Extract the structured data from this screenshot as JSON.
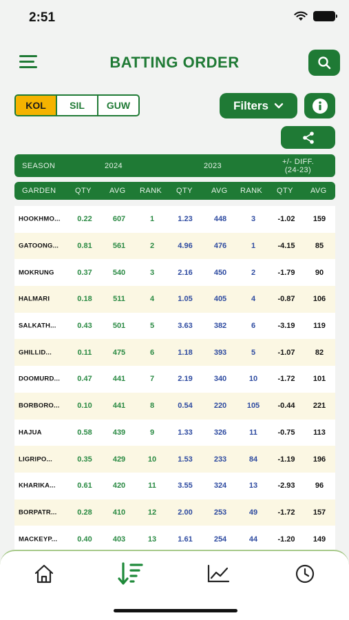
{
  "status_bar": {
    "time": "2:51"
  },
  "header": {
    "title": "BATTING ORDER"
  },
  "region_tabs": [
    {
      "label": "KOL",
      "active": true
    },
    {
      "label": "SIL",
      "active": false
    },
    {
      "label": "GUW",
      "active": false
    }
  ],
  "toolbar": {
    "filters_label": "Filters"
  },
  "table_header": {
    "season_label": "SEASON",
    "year_current": "2024",
    "year_previous": "2023",
    "diff_label_line1": "+/- DIFF.",
    "diff_label_line2": "(24-23)",
    "columns": [
      "GARDEN",
      "QTY",
      "AVG",
      "RANK",
      "QTY",
      "AVG",
      "RANK",
      "QTY",
      "AVG"
    ]
  },
  "rows": [
    {
      "garden": "HOOKHMO...",
      "qty24": "0.22",
      "avg24": "607",
      "rank24": "1",
      "qty23": "1.23",
      "avg23": "448",
      "rank23": "3",
      "qty_diff": "-1.02",
      "avg_diff": "159"
    },
    {
      "garden": "GATOONG...",
      "qty24": "0.81",
      "avg24": "561",
      "rank24": "2",
      "qty23": "4.96",
      "avg23": "476",
      "rank23": "1",
      "qty_diff": "-4.15",
      "avg_diff": "85"
    },
    {
      "garden": "MOKRUNG",
      "qty24": "0.37",
      "avg24": "540",
      "rank24": "3",
      "qty23": "2.16",
      "avg23": "450",
      "rank23": "2",
      "qty_diff": "-1.79",
      "avg_diff": "90"
    },
    {
      "garden": "HALMARI",
      "qty24": "0.18",
      "avg24": "511",
      "rank24": "4",
      "qty23": "1.05",
      "avg23": "405",
      "rank23": "4",
      "qty_diff": "-0.87",
      "avg_diff": "106"
    },
    {
      "garden": "SALKATH...",
      "qty24": "0.43",
      "avg24": "501",
      "rank24": "5",
      "qty23": "3.63",
      "avg23": "382",
      "rank23": "6",
      "qty_diff": "-3.19",
      "avg_diff": "119"
    },
    {
      "garden": "GHILLID...",
      "qty24": "0.11",
      "avg24": "475",
      "rank24": "6",
      "qty23": "1.18",
      "avg23": "393",
      "rank23": "5",
      "qty_diff": "-1.07",
      "avg_diff": "82"
    },
    {
      "garden": "DOOMURD...",
      "qty24": "0.47",
      "avg24": "441",
      "rank24": "7",
      "qty23": "2.19",
      "avg23": "340",
      "rank23": "10",
      "qty_diff": "-1.72",
      "avg_diff": "101"
    },
    {
      "garden": "BORBORO...",
      "qty24": "0.10",
      "avg24": "441",
      "rank24": "8",
      "qty23": "0.54",
      "avg23": "220",
      "rank23": "105",
      "qty_diff": "-0.44",
      "avg_diff": "221"
    },
    {
      "garden": "HAJUA",
      "qty24": "0.58",
      "avg24": "439",
      "rank24": "9",
      "qty23": "1.33",
      "avg23": "326",
      "rank23": "11",
      "qty_diff": "-0.75",
      "avg_diff": "113"
    },
    {
      "garden": "LIGRIPO...",
      "qty24": "0.35",
      "avg24": "429",
      "rank24": "10",
      "qty23": "1.53",
      "avg23": "233",
      "rank23": "84",
      "qty_diff": "-1.19",
      "avg_diff": "196"
    },
    {
      "garden": "KHARIKA...",
      "qty24": "0.61",
      "avg24": "420",
      "rank24": "11",
      "qty23": "3.55",
      "avg23": "324",
      "rank23": "13",
      "qty_diff": "-2.93",
      "avg_diff": "96"
    },
    {
      "garden": "BORPATR...",
      "qty24": "0.28",
      "avg24": "410",
      "rank24": "12",
      "qty23": "2.00",
      "avg23": "253",
      "rank23": "49",
      "qty_diff": "-1.72",
      "avg_diff": "157"
    },
    {
      "garden": "MACKEYP...",
      "qty24": "0.40",
      "avg24": "403",
      "rank24": "13",
      "qty23": "1.61",
      "avg23": "254",
      "rank23": "44",
      "qty_diff": "-1.20",
      "avg_diff": "149"
    }
  ],
  "bottom_nav": [
    {
      "icon": "home-icon",
      "active": false
    },
    {
      "icon": "sort-descending-icon",
      "active": true
    },
    {
      "icon": "line-chart-icon",
      "active": false
    },
    {
      "icon": "clock-icon",
      "active": false
    }
  ],
  "colors": {
    "brand_green": "#1f7a35",
    "accent_yellow": "#f5b300",
    "value_green": "#2a8a43",
    "value_blue": "#2d4aa0"
  }
}
